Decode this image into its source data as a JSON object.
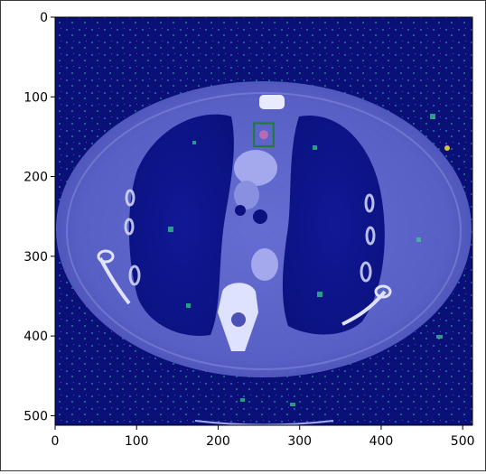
{
  "figure": {
    "x_ticks": [
      "0",
      "100",
      "200",
      "300",
      "400",
      "500"
    ],
    "y_ticks": [
      "0",
      "100",
      "200",
      "300",
      "400",
      "500"
    ],
    "x_tick_values": [
      0,
      100,
      200,
      300,
      400,
      500
    ],
    "y_tick_values": [
      0,
      100,
      200,
      300,
      400,
      500
    ],
    "image_extent": [
      0,
      512,
      512,
      0
    ],
    "colors": {
      "background": "#0a1078",
      "body": "#5a62c8",
      "bone": "#e8eaff",
      "lung": "#0e1590",
      "heatmap": "#36d68a",
      "box": "#1f7a3a"
    }
  },
  "annotation": {
    "label": "detection-box",
    "box_data": [
      244,
      133,
      268,
      162
    ]
  }
}
